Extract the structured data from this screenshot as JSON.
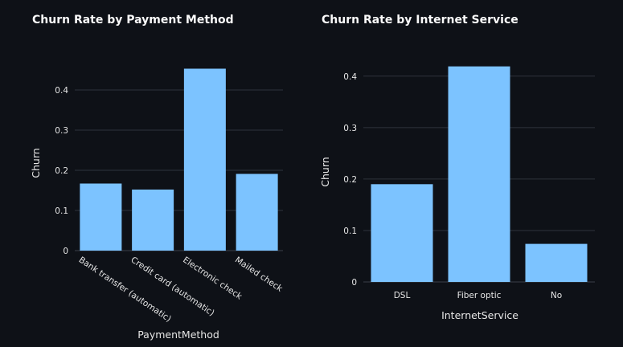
{
  "chart_data": [
    {
      "type": "bar",
      "title": "Churn Rate by Payment Method",
      "xlabel": "PaymentMethod",
      "ylabel": "Churn",
      "categories": [
        "Bank transfer (automatic)",
        "Credit card (automatic)",
        "Electronic check",
        "Mailed check"
      ],
      "values": [
        0.167,
        0.152,
        0.453,
        0.191
      ],
      "ylim": [
        0,
        0.46
      ],
      "yticks": [
        0,
        0.1,
        0.2,
        0.3,
        0.4
      ],
      "ytick_labels": [
        "0",
        "0.1",
        "0.2",
        "0.3",
        "0.4"
      ],
      "grid": true,
      "bar_color": "#7cc3ff"
    },
    {
      "type": "bar",
      "title": "Churn Rate by Internet Service",
      "xlabel": "InternetService",
      "ylabel": "Churn",
      "categories": [
        "DSL",
        "Fiber optic",
        "No"
      ],
      "values": [
        0.19,
        0.419,
        0.074
      ],
      "ylim": [
        0,
        0.42
      ],
      "yticks": [
        0,
        0.1,
        0.2,
        0.3,
        0.4
      ],
      "ytick_labels": [
        "0",
        "0.1",
        "0.2",
        "0.3",
        "0.4"
      ],
      "grid": true,
      "bar_color": "#7cc3ff"
    }
  ]
}
